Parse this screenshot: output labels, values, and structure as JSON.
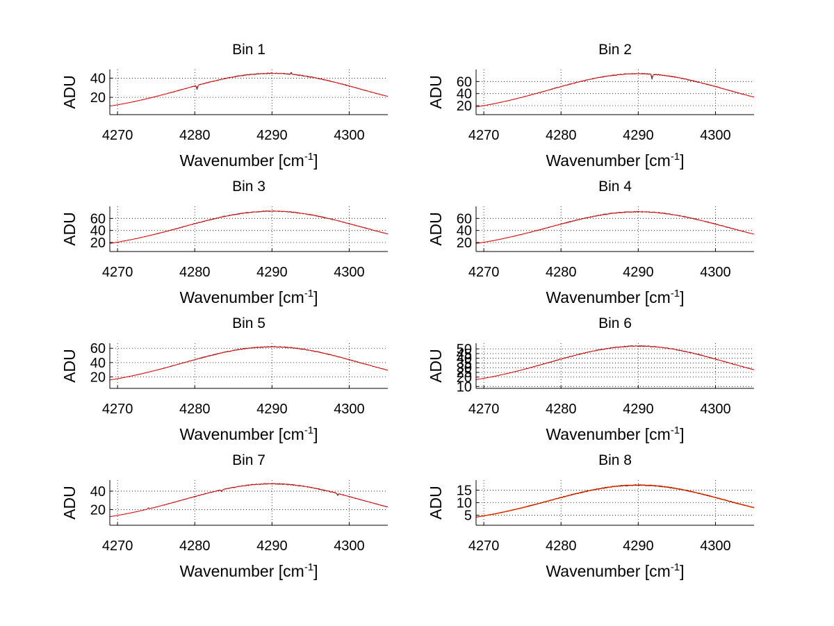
{
  "figure": {
    "background": "#ffffff",
    "noisy_line_color": "#000000",
    "fit_line_color": "#ff0000",
    "bin8_band_color": "#ffa500"
  },
  "chart_data": [
    {
      "type": "line",
      "title": "Bin 1",
      "xlabel_text": "Wavenumber [cm",
      "xlabel_sup": "-1",
      "xlabel_close": "]",
      "ylabel": "ADU",
      "grid": true,
      "xlim": [
        4269,
        4305
      ],
      "ylim": [
        2,
        49
      ],
      "xticks": [
        4270,
        4280,
        4290,
        4300
      ],
      "yticks": [
        20,
        40
      ],
      "peak": 45,
      "edge": 3,
      "features": [
        {
          "x": 4280.3,
          "depth": -4
        },
        {
          "x": 4292.5,
          "depth": 1.5
        }
      ]
    },
    {
      "type": "line",
      "title": "Bin 2",
      "xlabel_text": "Wavenumber [cm",
      "xlabel_sup": "-1",
      "xlabel_close": "]",
      "ylabel": "ADU",
      "grid": true,
      "xlim": [
        4269,
        4305
      ],
      "ylim": [
        5,
        80
      ],
      "xticks": [
        4270,
        4280,
        4290,
        4300
      ],
      "yticks": [
        20,
        40,
        60
      ],
      "peak": 73,
      "edge": 5,
      "features": [
        {
          "x": 4291.8,
          "depth": -8
        }
      ]
    },
    {
      "type": "line",
      "title": "Bin 3",
      "xlabel_text": "Wavenumber [cm",
      "xlabel_sup": "-1",
      "xlabel_close": "]",
      "ylabel": "ADU",
      "grid": true,
      "xlim": [
        4269,
        4305
      ],
      "ylim": [
        5,
        80
      ],
      "xticks": [
        4270,
        4280,
        4290,
        4300
      ],
      "yticks": [
        20,
        40,
        60
      ],
      "peak": 72,
      "edge": 6,
      "features": []
    },
    {
      "type": "line",
      "title": "Bin 4",
      "xlabel_text": "Wavenumber [cm",
      "xlabel_sup": "-1",
      "xlabel_close": "]",
      "ylabel": "ADU",
      "grid": true,
      "xlim": [
        4269,
        4305
      ],
      "ylim": [
        5,
        80
      ],
      "xticks": [
        4270,
        4280,
        4290,
        4300
      ],
      "yticks": [
        20,
        40,
        60
      ],
      "peak": 71,
      "edge": 6,
      "features": []
    },
    {
      "type": "line",
      "title": "Bin 5",
      "xlabel_text": "Wavenumber [cm",
      "xlabel_sup": "-1",
      "xlabel_close": "]",
      "ylabel": "ADU",
      "grid": true,
      "xlim": [
        4269,
        4305
      ],
      "ylim": [
        4,
        67
      ],
      "xticks": [
        4270,
        4280,
        4290,
        4300
      ],
      "yticks": [
        20,
        40,
        60
      ],
      "peak": 62,
      "edge": 5,
      "features": []
    },
    {
      "type": "line",
      "title": "Bin 6",
      "xlabel_text": "Wavenumber [cm",
      "xlabel_sup": "-1",
      "xlabel_close": "]",
      "ylabel": "ADU",
      "grid": true,
      "xlim": [
        4269,
        4305
      ],
      "ylim": [
        8,
        56
      ],
      "xticks": [
        4270,
        4280,
        4290,
        4300
      ],
      "yticks": [
        10,
        20,
        25,
        30,
        35,
        40,
        45,
        50
      ],
      "peak": 53,
      "edge": 9,
      "features": []
    },
    {
      "type": "line",
      "title": "Bin 7",
      "xlabel_text": "Wavenumber [cm",
      "xlabel_sup": "-1",
      "xlabel_close": "]",
      "ylabel": "ADU",
      "grid": true,
      "xlim": [
        4269,
        4305
      ],
      "ylim": [
        3,
        52
      ],
      "xticks": [
        4270,
        4280,
        4290,
        4300
      ],
      "yticks": [
        20,
        40
      ],
      "peak": 48,
      "edge": 4,
      "features": [
        {
          "x": 4274,
          "depth": 1.5
        },
        {
          "x": 4283.5,
          "depth": -2
        },
        {
          "x": 4298.5,
          "depth": -2
        }
      ]
    },
    {
      "type": "line",
      "title": "Bin 8",
      "xlabel_text": "Wavenumber [cm",
      "xlabel_sup": "-1",
      "xlabel_close": "]",
      "ylabel": "ADU",
      "grid": true,
      "xlim": [
        4269,
        4305
      ],
      "ylim": [
        1,
        19
      ],
      "xticks": [
        4270,
        4280,
        4290,
        4300
      ],
      "yticks": [
        5,
        10,
        15
      ],
      "peak": 17,
      "edge": 1.3,
      "features": []
    }
  ]
}
